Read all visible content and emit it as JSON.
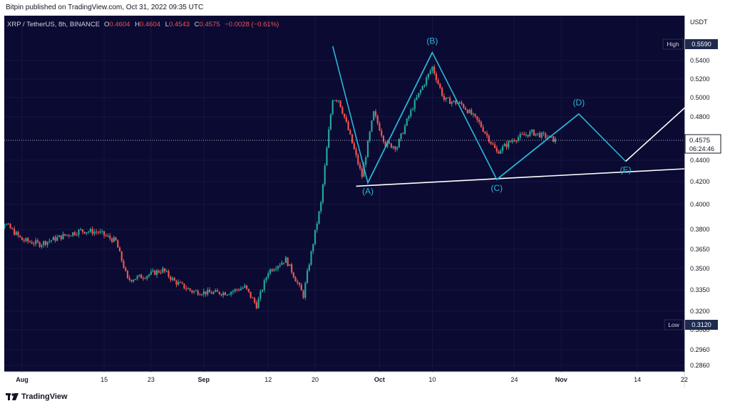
{
  "header": {
    "published": "Bitpin published on TradingView.com, Oct 31, 2022 09:35 UTC"
  },
  "legend": {
    "symbol": "XRP / TetherUS, 8h, BINANCE",
    "o_label": "O",
    "o_value": "0.4604",
    "h_label": "H",
    "h_value": "0.4604",
    "l_label": "L",
    "l_value": "0.4543",
    "c_label": "C",
    "c_value": "0.4575",
    "change": "−0.0028 (−0.61%)"
  },
  "footer": {
    "brand": "TradingView"
  },
  "colors": {
    "background": "#0a0a32",
    "up": "#26a69a",
    "down": "#ef5350",
    "pattern": "#2ab7d6",
    "text_axis": "#b2b5be"
  },
  "chart_data": {
    "type": "candlestick",
    "symbol": "XRP / TetherUS",
    "timeframe": "8h",
    "exchange": "BINANCE",
    "currency_label": "USDT",
    "y_ticks": [
      "0.5590",
      "0.5400",
      "0.5200",
      "0.5000",
      "0.4800",
      "0.4575",
      "0.4400",
      "0.4200",
      "0.4000",
      "0.3800",
      "0.3650",
      "0.3500",
      "0.3350",
      "0.3200",
      "0.3080",
      "0.2960",
      "0.2860"
    ],
    "x_ticks": [
      "Aug",
      "15",
      "23",
      "Sep",
      "12",
      "20",
      "Oct",
      "10",
      "24",
      "Nov",
      "14",
      "22"
    ],
    "high_label": "High",
    "high_value": "0.5590",
    "low_label": "Low",
    "low_value": "0.3120",
    "last_price": "0.4575",
    "countdown": "06:24:46",
    "wave_labels": [
      "(A)",
      "(B)",
      "(C)",
      "(D)",
      "(E)"
    ],
    "wave_points": [
      {
        "label": "(A)",
        "date": "2022-09-29",
        "price": 0.419
      },
      {
        "label": "(B)",
        "date": "2022-10-10",
        "price": 0.549
      },
      {
        "label": "(C)",
        "date": "2022-10-21",
        "price": 0.422
      },
      {
        "label": "(D)",
        "date": "2022-11-04",
        "price": 0.483
      },
      {
        "label": "(E)",
        "date": "2022-11-12",
        "price": 0.439
      }
    ],
    "support_line": [
      {
        "date": "2022-09-27",
        "price": 0.416
      },
      {
        "date": "2022-12-01",
        "price": 0.432
      }
    ],
    "projection_arrow": [
      {
        "date": "2022-11-12",
        "price": 0.439
      },
      {
        "date": "2022-11-24",
        "price": 0.5
      }
    ],
    "close_series": [
      {
        "date": "2022-07-26",
        "close": 0.366
      },
      {
        "date": "2022-07-29",
        "close": 0.385
      },
      {
        "date": "2022-08-01",
        "close": 0.372
      },
      {
        "date": "2022-08-04",
        "close": 0.369
      },
      {
        "date": "2022-08-08",
        "close": 0.375
      },
      {
        "date": "2022-08-11",
        "close": 0.379
      },
      {
        "date": "2022-08-14",
        "close": 0.378
      },
      {
        "date": "2022-08-17",
        "close": 0.371
      },
      {
        "date": "2022-08-19",
        "close": 0.342
      },
      {
        "date": "2022-08-22",
        "close": 0.345
      },
      {
        "date": "2022-08-25",
        "close": 0.349
      },
      {
        "date": "2022-08-27",
        "close": 0.341
      },
      {
        "date": "2022-08-30",
        "close": 0.334
      },
      {
        "date": "2022-09-02",
        "close": 0.333
      },
      {
        "date": "2022-09-05",
        "close": 0.333
      },
      {
        "date": "2022-09-08",
        "close": 0.337
      },
      {
        "date": "2022-09-10",
        "close": 0.324
      },
      {
        "date": "2022-09-12",
        "close": 0.348
      },
      {
        "date": "2022-09-15",
        "close": 0.357
      },
      {
        "date": "2022-09-18",
        "close": 0.331
      },
      {
        "date": "2022-09-21",
        "close": 0.401
      },
      {
        "date": "2022-09-23",
        "close": 0.499
      },
      {
        "date": "2022-09-24",
        "close": 0.498
      },
      {
        "date": "2022-09-26",
        "close": 0.461
      },
      {
        "date": "2022-09-28",
        "close": 0.425
      },
      {
        "date": "2022-09-30",
        "close": 0.484
      },
      {
        "date": "2022-10-02",
        "close": 0.454
      },
      {
        "date": "2022-10-04",
        "close": 0.452
      },
      {
        "date": "2022-10-07",
        "close": 0.495
      },
      {
        "date": "2022-10-10",
        "close": 0.533
      },
      {
        "date": "2022-10-12",
        "close": 0.498
      },
      {
        "date": "2022-10-15",
        "close": 0.493
      },
      {
        "date": "2022-10-18",
        "close": 0.474
      },
      {
        "date": "2022-10-21",
        "close": 0.447
      },
      {
        "date": "2022-10-24",
        "close": 0.459
      },
      {
        "date": "2022-10-27",
        "close": 0.465
      },
      {
        "date": "2022-10-30",
        "close": 0.46
      },
      {
        "date": "2022-10-31",
        "close": 0.4575
      }
    ]
  }
}
